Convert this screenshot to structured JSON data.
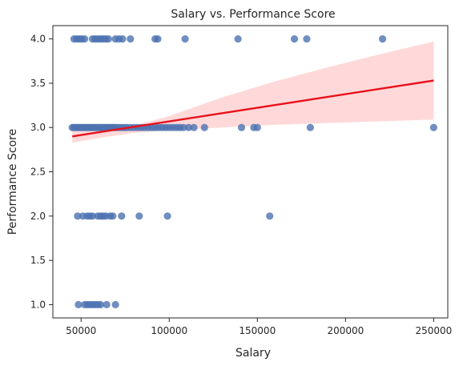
{
  "chart_data": {
    "type": "scatter",
    "title": "Salary vs. Performance Score",
    "xlabel": "Salary",
    "ylabel": "Performance Score",
    "xlim": [
      34000,
      258000
    ],
    "ylim": [
      0.85,
      4.15
    ],
    "xticks": [
      50000,
      100000,
      150000,
      200000,
      250000
    ],
    "yticks": [
      1.0,
      1.5,
      2.0,
      2.5,
      3.0,
      3.5,
      4.0
    ],
    "xtick_labels": [
      "50000",
      "100000",
      "150000",
      "200000",
      "250000"
    ],
    "ytick_labels": [
      "1.0",
      "1.5",
      "2.0",
      "2.5",
      "3.0",
      "3.5",
      "4.0"
    ],
    "grid": false,
    "colors": {
      "points": "#4c72b0",
      "regression_line": "#e8101a",
      "confidence_band": "#ffcccc",
      "axes": "#262626"
    },
    "series": [
      {
        "values": [
          {
            "x": 46000,
            "y": 4
          },
          {
            "x": 47500,
            "y": 4
          },
          {
            "x": 49000,
            "y": 4
          },
          {
            "x": 50500,
            "y": 4
          },
          {
            "x": 52000,
            "y": 4
          },
          {
            "x": 56500,
            "y": 4
          },
          {
            "x": 58000,
            "y": 4
          },
          {
            "x": 59500,
            "y": 4
          },
          {
            "x": 61000,
            "y": 4
          },
          {
            "x": 62500,
            "y": 4
          },
          {
            "x": 64000,
            "y": 4
          },
          {
            "x": 65500,
            "y": 4
          },
          {
            "x": 69500,
            "y": 4
          },
          {
            "x": 71500,
            "y": 4
          },
          {
            "x": 73500,
            "y": 4
          },
          {
            "x": 78000,
            "y": 4
          },
          {
            "x": 92000,
            "y": 4
          },
          {
            "x": 93500,
            "y": 4
          },
          {
            "x": 109000,
            "y": 4
          },
          {
            "x": 139000,
            "y": 4
          },
          {
            "x": 171000,
            "y": 4
          },
          {
            "x": 178000,
            "y": 4
          },
          {
            "x": 221000,
            "y": 4
          },
          {
            "x": 45000,
            "y": 3
          },
          {
            "x": 46000,
            "y": 3
          },
          {
            "x": 47000,
            "y": 3
          },
          {
            "x": 48000,
            "y": 3
          },
          {
            "x": 49000,
            "y": 3
          },
          {
            "x": 50000,
            "y": 3
          },
          {
            "x": 51000,
            "y": 3
          },
          {
            "x": 52000,
            "y": 3
          },
          {
            "x": 53000,
            "y": 3
          },
          {
            "x": 54000,
            "y": 3
          },
          {
            "x": 55000,
            "y": 3
          },
          {
            "x": 56000,
            "y": 3
          },
          {
            "x": 57000,
            "y": 3
          },
          {
            "x": 58000,
            "y": 3
          },
          {
            "x": 59000,
            "y": 3
          },
          {
            "x": 60000,
            "y": 3
          },
          {
            "x": 61000,
            "y": 3
          },
          {
            "x": 62000,
            "y": 3
          },
          {
            "x": 63000,
            "y": 3
          },
          {
            "x": 64000,
            "y": 3
          },
          {
            "x": 65000,
            "y": 3
          },
          {
            "x": 66000,
            "y": 3
          },
          {
            "x": 67000,
            "y": 3
          },
          {
            "x": 68000,
            "y": 3
          },
          {
            "x": 69000,
            "y": 3
          },
          {
            "x": 70000,
            "y": 3
          },
          {
            "x": 71500,
            "y": 3
          },
          {
            "x": 73000,
            "y": 3
          },
          {
            "x": 74500,
            "y": 3
          },
          {
            "x": 76000,
            "y": 3
          },
          {
            "x": 78000,
            "y": 3
          },
          {
            "x": 80000,
            "y": 3
          },
          {
            "x": 82000,
            "y": 3
          },
          {
            "x": 84000,
            "y": 3
          },
          {
            "x": 86000,
            "y": 3
          },
          {
            "x": 88000,
            "y": 3
          },
          {
            "x": 90000,
            "y": 3
          },
          {
            "x": 92000,
            "y": 3
          },
          {
            "x": 94000,
            "y": 3
          },
          {
            "x": 96000,
            "y": 3
          },
          {
            "x": 98000,
            "y": 3
          },
          {
            "x": 100000,
            "y": 3
          },
          {
            "x": 102000,
            "y": 3
          },
          {
            "x": 104000,
            "y": 3
          },
          {
            "x": 106000,
            "y": 3
          },
          {
            "x": 108000,
            "y": 3
          },
          {
            "x": 111000,
            "y": 3
          },
          {
            "x": 114000,
            "y": 3
          },
          {
            "x": 120000,
            "y": 3
          },
          {
            "x": 141000,
            "y": 3
          },
          {
            "x": 148000,
            "y": 3
          },
          {
            "x": 150000,
            "y": 3
          },
          {
            "x": 180000,
            "y": 3
          },
          {
            "x": 250000,
            "y": 3
          },
          {
            "x": 48000,
            "y": 2
          },
          {
            "x": 51000,
            "y": 2
          },
          {
            "x": 53500,
            "y": 2
          },
          {
            "x": 55000,
            "y": 2
          },
          {
            "x": 56500,
            "y": 2
          },
          {
            "x": 59500,
            "y": 2
          },
          {
            "x": 61000,
            "y": 2
          },
          {
            "x": 62500,
            "y": 2
          },
          {
            "x": 64000,
            "y": 2
          },
          {
            "x": 66500,
            "y": 2
          },
          {
            "x": 68000,
            "y": 2
          },
          {
            "x": 73000,
            "y": 2
          },
          {
            "x": 83000,
            "y": 2
          },
          {
            "x": 99000,
            "y": 2
          },
          {
            "x": 157000,
            "y": 2
          },
          {
            "x": 48500,
            "y": 1
          },
          {
            "x": 52000,
            "y": 1
          },
          {
            "x": 53500,
            "y": 1
          },
          {
            "x": 55000,
            "y": 1
          },
          {
            "x": 56500,
            "y": 1
          },
          {
            "x": 58000,
            "y": 1
          },
          {
            "x": 59500,
            "y": 1
          },
          {
            "x": 61000,
            "y": 1
          },
          {
            "x": 64500,
            "y": 1
          },
          {
            "x": 69500,
            "y": 1
          }
        ]
      }
    ],
    "regression": {
      "x": [
        45000,
        250000
      ],
      "y": [
        2.9,
        3.53
      ],
      "band": {
        "x": [
          45000,
          60000,
          80000,
          100000,
          130000,
          160000,
          190000,
          220000,
          250000
        ],
        "lower": [
          2.83,
          2.88,
          2.94,
          2.97,
          3.0,
          3.03,
          3.05,
          3.07,
          3.09
        ],
        "upper": [
          2.97,
          2.97,
          3.02,
          3.13,
          3.34,
          3.52,
          3.68,
          3.83,
          3.97
        ]
      }
    }
  }
}
